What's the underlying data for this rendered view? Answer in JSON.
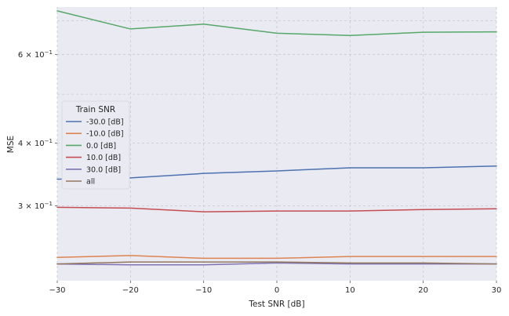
{
  "chart_data": {
    "type": "line",
    "xlabel": "Test SNR [dB]",
    "ylabel": "MSE",
    "yscale": "log",
    "xlim": [
      -30,
      30
    ],
    "ylim": [
      0.213,
      0.745
    ],
    "x": [
      -30,
      -20,
      -10,
      0,
      10,
      20,
      30
    ],
    "x_ticks": [
      -30,
      -20,
      -10,
      0,
      10,
      20,
      30
    ],
    "x_tick_labels": [
      "−30",
      "−20",
      "−10",
      "0",
      "10",
      "20",
      "30"
    ],
    "y_ticks": [
      0.3,
      0.4,
      0.6
    ],
    "y_tick_labels": [
      {
        "base": "3 × 10",
        "exp": "−1"
      },
      {
        "base": "4 × 10",
        "exp": "−1"
      },
      {
        "base": "6 × 10",
        "exp": "−1"
      }
    ],
    "grid": true,
    "background_color": "#eaeaf2",
    "legend": {
      "title": "Train SNR",
      "placement": "center-left"
    },
    "series": [
      {
        "name": "-30.0 [dB]",
        "color": "#4c72b0",
        "values": [
          0.339,
          0.341,
          0.348,
          0.352,
          0.357,
          0.357,
          0.36
        ]
      },
      {
        "name": "-10.0 [dB]",
        "color": "#dd8452",
        "values": [
          0.237,
          0.239,
          0.236,
          0.236,
          0.238,
          0.238,
          0.238
        ]
      },
      {
        "name": "0.0 [dB]",
        "color": "#55a868",
        "values": [
          0.732,
          0.674,
          0.689,
          0.661,
          0.654,
          0.664,
          0.665
        ]
      },
      {
        "name": "10.0 [dB]",
        "color": "#c44e52",
        "values": [
          0.298,
          0.297,
          0.292,
          0.293,
          0.293,
          0.295,
          0.296
        ]
      },
      {
        "name": "30.0 [dB]",
        "color": "#8172b3",
        "values": [
          0.23,
          0.229,
          0.229,
          0.231,
          0.23,
          0.23,
          0.23
        ]
      },
      {
        "name": "all",
        "color": "#937860",
        "values": [
          0.23,
          0.232,
          0.232,
          0.232,
          0.231,
          0.231,
          0.23
        ]
      }
    ]
  }
}
